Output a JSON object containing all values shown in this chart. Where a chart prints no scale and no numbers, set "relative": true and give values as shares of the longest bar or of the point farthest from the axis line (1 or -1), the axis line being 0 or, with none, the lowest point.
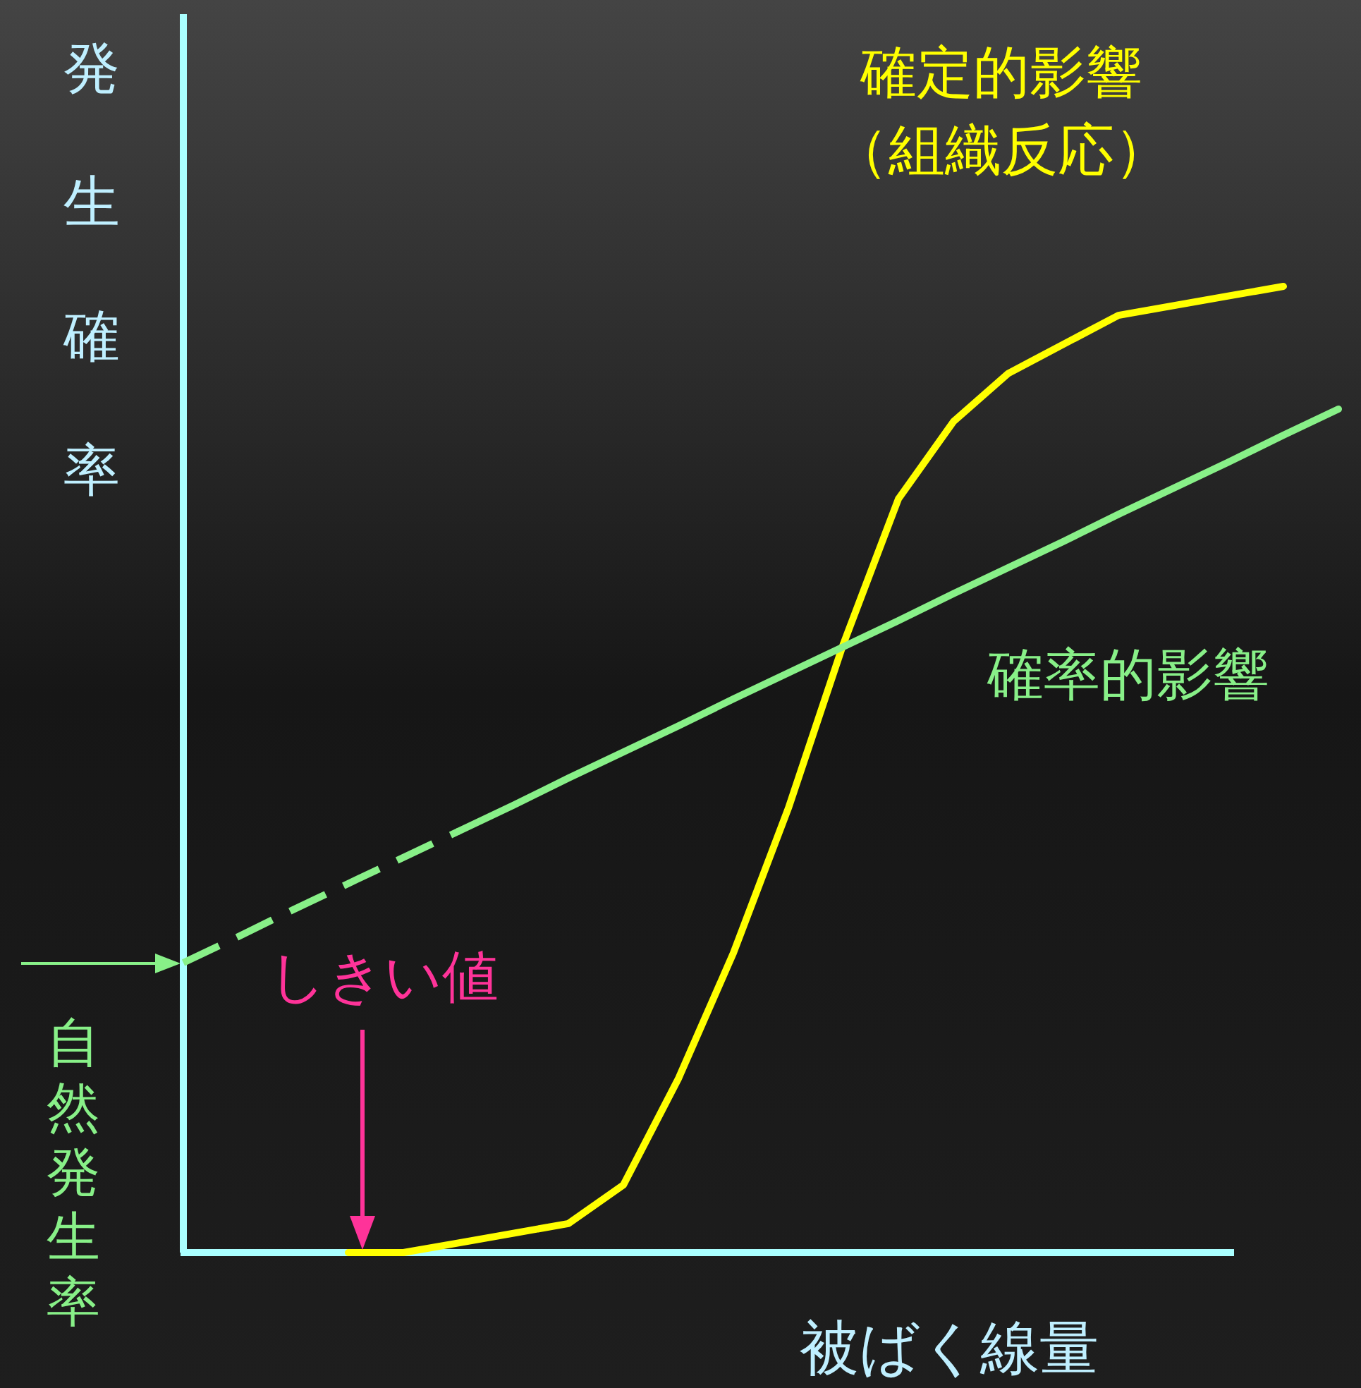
{
  "chart_data": {
    "type": "line",
    "relative": true,
    "ylabel": "発生確率",
    "xlabel": "被ばく線量",
    "legend": false,
    "grid": false,
    "marker": "none",
    "categories": [
      null,
      null,
      null,
      null,
      null,
      null,
      null,
      null,
      null,
      null,
      null,
      null,
      null,
      null,
      null,
      null,
      null,
      null,
      null,
      null,
      null,
      null
    ],
    "series": [
      {
        "name": "確定的影響（組織反応）",
        "color": "#ffff00",
        "line_style": "solid",
        "values": [
          null,
          null,
          null,
          0,
          0.0,
          0.01,
          0.02,
          0.03,
          0.07,
          0.18,
          0.31,
          0.46,
          0.63,
          0.78,
          0.86,
          0.91,
          0.94,
          0.97,
          0.98,
          0.99,
          1.0,
          null
        ]
      },
      {
        "name": "確率的影響",
        "color": "#88f088",
        "line_style": "solid",
        "values": [
          null,
          null,
          null,
          null,
          null,
          0.436,
          0.463,
          0.491,
          0.518,
          0.545,
          0.573,
          0.6,
          0.627,
          0.654,
          0.682,
          0.709,
          0.736,
          0.764,
          0.791,
          0.818,
          0.846,
          0.873
        ]
      },
      {
        "color": "#88f088",
        "line_style": "dashed",
        "values": [
          0.3,
          0.327,
          0.355,
          0.382,
          0.409,
          0.436,
          null,
          null,
          null,
          null,
          null,
          null,
          null,
          null,
          null,
          null,
          null,
          null,
          null,
          null,
          null,
          null
        ]
      }
    ],
    "annotations": [
      "自然発生率",
      "しきい値"
    ]
  }
}
